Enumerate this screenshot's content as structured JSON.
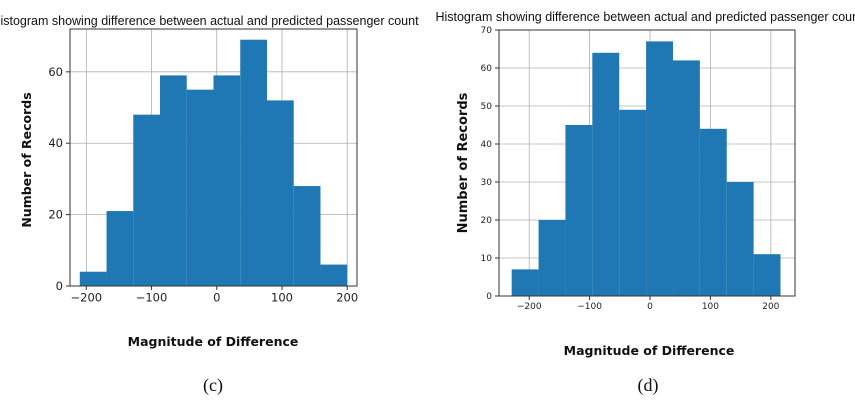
{
  "chart_data": [
    {
      "type": "bar",
      "title": "Histogram showing difference between actual and predicted passenger count",
      "xlabel": "Magnitude of Difference",
      "ylabel": "Number of Records",
      "bin_edges": [
        -210,
        -169,
        -128,
        -87,
        -46,
        -5,
        36,
        77,
        118,
        159,
        200
      ],
      "values": [
        4,
        21,
        48,
        59,
        55,
        59,
        69,
        52,
        28,
        6
      ],
      "xticks": [
        -200,
        -100,
        0,
        100,
        200
      ],
      "yticks": [
        0,
        20,
        40,
        60
      ],
      "xlim": [
        -225,
        215
      ],
      "ylim": [
        0,
        72
      ],
      "grid": true,
      "color": "#1f77b4",
      "caption": "(c)"
    },
    {
      "type": "bar",
      "title": "Histogram showing difference between actual and predicted passenger count",
      "xlabel": "Magnitude of Difference",
      "ylabel": "Number of Records",
      "bin_edges": [
        -229,
        -184.5,
        -140,
        -95.5,
        -51,
        -6.5,
        38,
        82.5,
        127,
        171.5,
        216
      ],
      "values": [
        7,
        20,
        45,
        64,
        49,
        67,
        62,
        44,
        30,
        11
      ],
      "xticks": [
        -200,
        -100,
        0,
        100,
        200
      ],
      "yticks": [
        0,
        10,
        20,
        30,
        40,
        50,
        60,
        70
      ],
      "xlim": [
        -250,
        240
      ],
      "ylim": [
        0,
        70
      ],
      "grid": true,
      "color": "#1f77b4",
      "caption": "(d)"
    }
  ]
}
